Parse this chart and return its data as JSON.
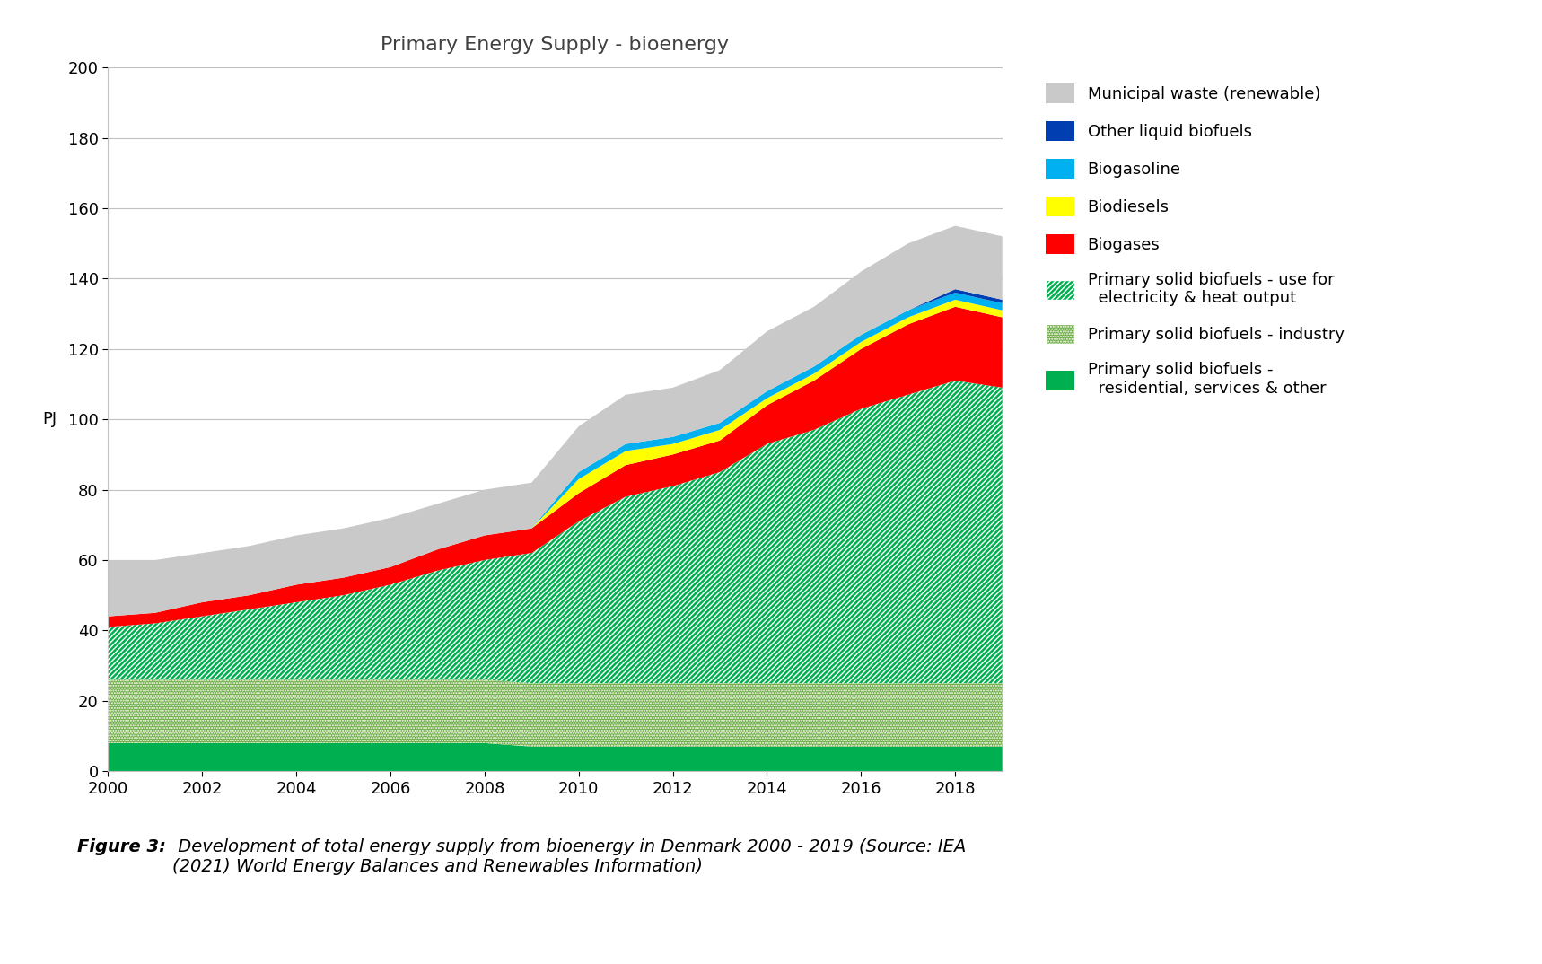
{
  "title": "Primary Energy Supply - bioenergy",
  "ylabel": "PJ",
  "years": [
    2000,
    2001,
    2002,
    2003,
    2004,
    2005,
    2006,
    2007,
    2008,
    2009,
    2010,
    2011,
    2012,
    2013,
    2014,
    2015,
    2016,
    2017,
    2018,
    2019
  ],
  "psb_residential": [
    8,
    8,
    8,
    8,
    8,
    8,
    8,
    8,
    8,
    7,
    7,
    7,
    7,
    7,
    7,
    7,
    7,
    7,
    7,
    7
  ],
  "psb_industry": [
    18,
    18,
    18,
    18,
    18,
    18,
    18,
    18,
    18,
    18,
    18,
    18,
    18,
    18,
    18,
    18,
    18,
    18,
    18,
    18
  ],
  "psb_elec_heat": [
    15,
    16,
    18,
    20,
    22,
    24,
    27,
    31,
    34,
    37,
    46,
    53,
    56,
    60,
    68,
    72,
    78,
    82,
    86,
    84
  ],
  "biogases": [
    3,
    3,
    4,
    4,
    5,
    5,
    5,
    6,
    7,
    7,
    8,
    9,
    9,
    9,
    11,
    14,
    17,
    20,
    21,
    20
  ],
  "biodiesels": [
    0,
    0,
    0,
    0,
    0,
    0,
    0,
    0,
    0,
    0,
    4,
    4,
    3,
    3,
    2,
    2,
    2,
    2,
    2,
    2
  ],
  "biogasoline": [
    0,
    0,
    0,
    0,
    0,
    0,
    0,
    0,
    0,
    0,
    2,
    2,
    2,
    2,
    2,
    2,
    2,
    2,
    2,
    2
  ],
  "other_liquid": [
    0,
    0,
    0,
    0,
    0,
    0,
    0,
    0,
    0,
    0,
    0,
    0,
    0,
    0,
    0,
    0,
    0,
    0,
    1,
    1
  ],
  "municipal_waste": [
    16,
    15,
    14,
    14,
    14,
    14,
    14,
    13,
    13,
    13,
    13,
    14,
    14,
    15,
    17,
    17,
    18,
    19,
    18,
    18
  ],
  "col_res": "#00B050",
  "col_ind": "#70AD47",
  "col_elec": "#00B050",
  "col_bio": "#FF0000",
  "col_bd": "#FFFF00",
  "col_bg": "#00B0F0",
  "col_ol": "#003EB1",
  "col_mw": "#C9C9C9",
  "hatch_elec": "///",
  "hatch_ind": "...",
  "ylim": [
    0,
    200
  ],
  "xlim": [
    2000,
    2019
  ],
  "yticks": [
    0,
    20,
    40,
    60,
    80,
    100,
    120,
    140,
    160,
    180,
    200
  ],
  "xticks": [
    2000,
    2002,
    2004,
    2006,
    2008,
    2010,
    2012,
    2014,
    2016,
    2018
  ],
  "caption_bold": "Figure 3:",
  "caption_rest": " Development of total energy supply from bioenergy in Denmark 2000 - 2019 (Source: IEA\n(2021) World Energy Balances and Renewables Information)"
}
